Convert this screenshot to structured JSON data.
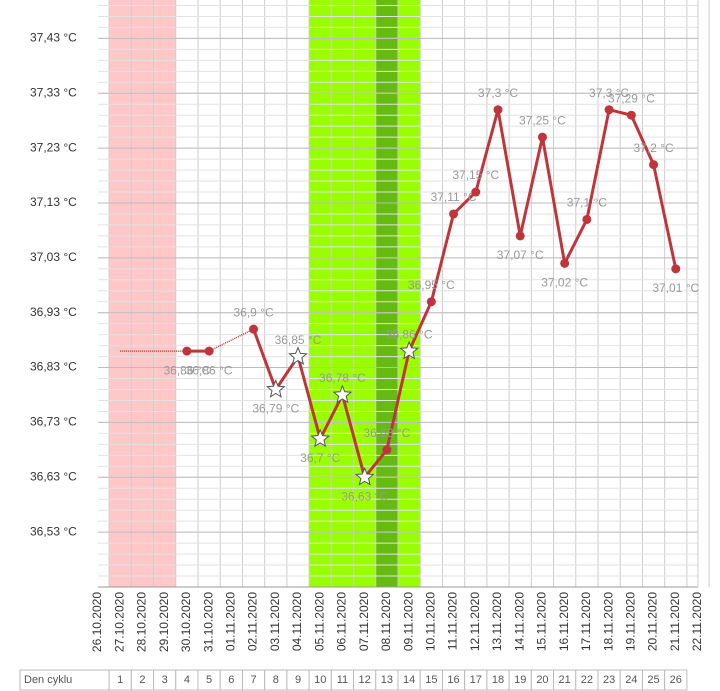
{
  "chart_data": {
    "type": "line",
    "categories": [
      "26.10.2020",
      "27.10.2020",
      "28.10.2020",
      "29.10.2020",
      "30.10.2020",
      "31.10.2020",
      "01.11.2020",
      "02.11.2020",
      "03.11.2020",
      "04.11.2020",
      "05.11.2020",
      "06.11.2020",
      "07.11.2020",
      "08.11.2020",
      "09.11.2020",
      "10.11.2020",
      "11.11.2020",
      "12.11.2020",
      "13.11.2020",
      "14.11.2020",
      "15.11.2020",
      "16.11.2020",
      "17.11.2020",
      "18.11.2020",
      "19.11.2020",
      "20.11.2020",
      "21.11.2020",
      "22.11.2020"
    ],
    "series": [
      {
        "color": "#c0353a",
        "values": [
          null,
          null,
          null,
          null,
          36.86,
          36.86,
          null,
          36.9,
          36.79,
          36.85,
          36.7,
          36.78,
          36.63,
          36.68,
          36.86,
          36.95,
          37.11,
          37.15,
          37.3,
          37.07,
          37.25,
          37.02,
          37.1,
          37.3,
          37.29,
          37.2,
          37.01,
          null
        ],
        "value_labels": [
          null,
          null,
          null,
          null,
          "36,86 °C",
          "36,86 °C",
          null,
          "36,9 °C",
          "36,79 °C",
          "36,85 °C",
          "36,7 °C",
          "36,78 °C",
          "36,63 °C",
          "36,68 °C",
          "36,86 °C",
          "36,95 °C",
          "37,11 °C",
          "37,15 °C",
          "37,3 °C",
          "37,07 °C",
          "37,25 °C",
          "37,02 °C",
          "37,1 °C",
          "37,3 °C",
          "37,29 °C",
          "37,2 °C",
          "37,01 °C",
          null
        ],
        "markers": [
          null,
          null,
          null,
          null,
          "circle",
          "circle",
          null,
          "circle",
          "star",
          "star",
          "star",
          "star",
          "star",
          "circle",
          "star",
          "circle",
          "circle",
          "circle",
          "circle",
          "circle",
          "circle",
          "circle",
          "circle",
          "circle",
          "circle",
          "circle",
          "circle",
          null
        ]
      }
    ],
    "bands": [
      {
        "from": 1,
        "to": 3,
        "color": "#ffc7c7"
      },
      {
        "from": 10,
        "to": 14,
        "color": "#99ff00"
      },
      {
        "from": 13,
        "to": 13,
        "color": "#66bb11"
      }
    ],
    "ylim": [
      36.43,
      37.5
    ],
    "yticks": [
      {
        "value": 36.53,
        "label": "36,53 °C"
      },
      {
        "value": 36.63,
        "label": "36,63 °C"
      },
      {
        "value": 36.73,
        "label": "36,73 °C"
      },
      {
        "value": 36.83,
        "label": "36,83 °C"
      },
      {
        "value": 36.93,
        "label": "36,93 °C"
      },
      {
        "value": 37.03,
        "label": "37,03 °C"
      },
      {
        "value": 37.13,
        "label": "37,13 °C"
      },
      {
        "value": 37.23,
        "label": "37,23 °C"
      },
      {
        "value": 37.33,
        "label": "37,33 °C"
      },
      {
        "value": 37.43,
        "label": "37,43 °C"
      }
    ],
    "grid": true,
    "cycle_label": "Den cyklu",
    "cycle_days": [
      1,
      2,
      3,
      4,
      5,
      6,
      7,
      8,
      9,
      10,
      11,
      12,
      13,
      14,
      15,
      16,
      17,
      18,
      19,
      20,
      21,
      22,
      23,
      24,
      25,
      26
    ]
  }
}
